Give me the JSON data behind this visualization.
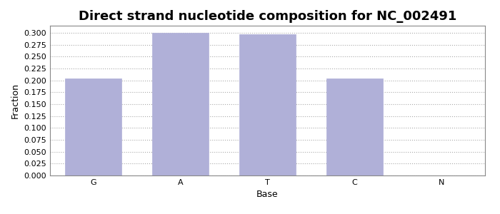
{
  "categories": [
    "G",
    "A",
    "T",
    "C",
    "N"
  ],
  "values": [
    0.204,
    0.3,
    0.297,
    0.204,
    0.0
  ],
  "bar_color": "#b0b0d8",
  "bar_edgecolor": "#b0b0d8",
  "title": "Direct strand nucleotide composition for NC_002491",
  "title_fontsize": 13,
  "xlabel": "Base",
  "ylabel": "Fraction",
  "axis_label_fontsize": 9,
  "ylim": [
    0.0,
    0.315
  ],
  "yticks": [
    0.0,
    0.025,
    0.05,
    0.075,
    0.1,
    0.125,
    0.15,
    0.175,
    0.2,
    0.225,
    0.25,
    0.275,
    0.3
  ],
  "background_color": "#ffffff",
  "grid_color": "#aaaaaa",
  "tick_fontsize": 8,
  "bar_width": 0.65,
  "font_family": "DejaVu Sans"
}
